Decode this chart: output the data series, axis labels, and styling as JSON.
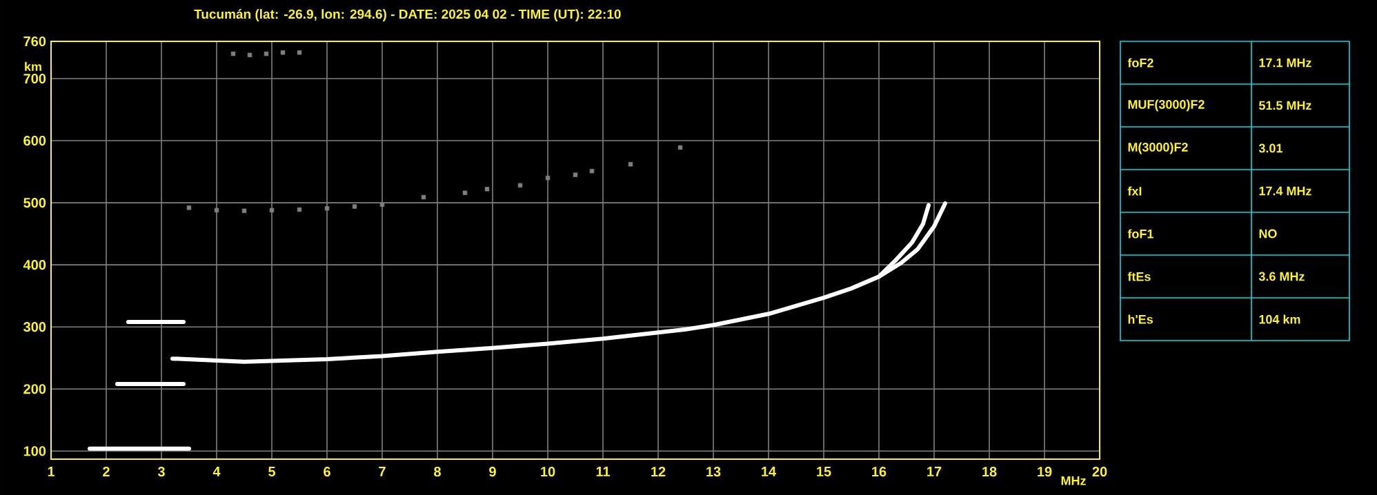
{
  "chart_data": [
    {
      "type": "line",
      "title": "Tucumán (lat: -26.9, lon: 294.6) - DATE: 2025 04 02 - TIME (UT): 22:10",
      "xlabel": "MHz",
      "ylabel": "km",
      "xlim": [
        1,
        20
      ],
      "xticks": [
        1,
        2,
        3,
        4,
        5,
        6,
        7,
        8,
        9,
        10,
        11,
        12,
        13,
        14,
        15,
        16,
        17,
        18,
        19,
        20
      ],
      "ylim": [
        87,
        760
      ],
      "yticks": [
        100,
        200,
        300,
        400,
        500,
        600,
        700,
        760
      ],
      "grid": true,
      "line_style": "solid",
      "series": [
        {
          "type": "line",
          "color": "#ffffff",
          "x": [
            3.2,
            4.5,
            6,
            7,
            8,
            9,
            10,
            11,
            12,
            12.5,
            13,
            14,
            15,
            15.5,
            16,
            16.3,
            16.6,
            16.8,
            16.9
          ],
          "values": [
            249,
            244,
            248,
            253,
            260,
            266,
            273,
            281,
            291,
            296,
            303,
            321,
            347,
            362,
            381,
            407,
            436,
            466,
            496
          ]
        },
        {
          "type": "line",
          "color": "#ffffff",
          "x": [
            16,
            16.4,
            16.7,
            17.0,
            17.2
          ],
          "values": [
            381,
            403,
            425,
            462,
            499
          ]
        },
        {
          "type": "line",
          "color": "#ffffff",
          "x": [
            1.7,
            3.5
          ],
          "values": [
            104,
            104
          ]
        },
        {
          "type": "line",
          "color": "#ffffff",
          "x": [
            2.2,
            3.4
          ],
          "values": [
            208,
            208
          ]
        },
        {
          "type": "line",
          "color": "#ffffff",
          "x": [
            2.4,
            3.4
          ],
          "values": [
            308,
            308
          ]
        },
        {
          "type": "scatter",
          "color": "#808080",
          "marker": "square",
          "x": [
            3.5,
            4,
            4.5,
            5,
            5.5,
            6,
            6.5,
            7,
            7.75,
            8.5,
            8.9,
            9.5,
            10,
            10.5,
            10.8,
            11.5,
            12.4
          ],
          "values": [
            492,
            488,
            487,
            488,
            489,
            491,
            494,
            497,
            509,
            516,
            522,
            528,
            540,
            545,
            551,
            562,
            589
          ]
        },
        {
          "type": "scatter",
          "color": "#808080",
          "marker": "square",
          "x": [
            4.3,
            4.6,
            4.9,
            5.2,
            5.5
          ],
          "values": [
            740,
            738,
            740,
            742,
            742
          ]
        }
      ]
    },
    {
      "type": "other",
      "annotations": [
        "foF2",
        "17.1 MHz",
        "MUF(3000)F2",
        "51.5 MHz",
        "M(3000)F2",
        "3.01",
        "fxI",
        "17.4 MHz",
        "foF1",
        "NO",
        "ftEs",
        "3.6 MHz",
        "h'Es",
        "104 km"
      ]
    }
  ]
}
